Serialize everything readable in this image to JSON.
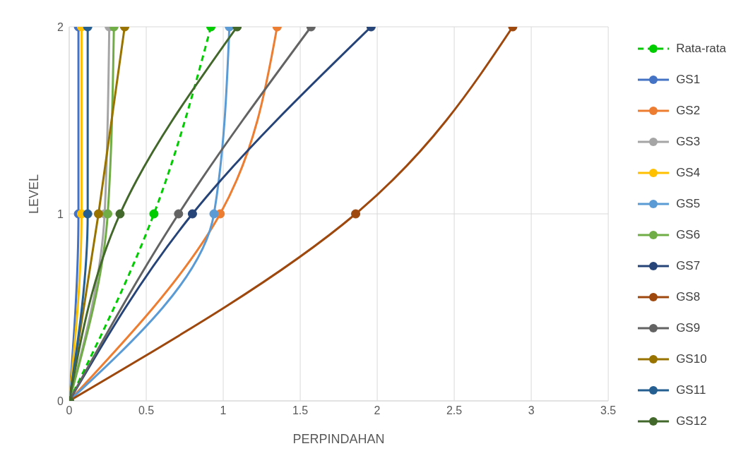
{
  "chart_data": {
    "type": "line",
    "xlabel": "PERPINDAHAN",
    "ylabel": "LEVEL",
    "xlim": [
      0,
      3.5
    ],
    "xticks": [
      0,
      0.5,
      1,
      1.5,
      2,
      2.5,
      3,
      3.5
    ],
    "ylim": [
      0,
      2
    ],
    "yticks": [
      0,
      1,
      2
    ],
    "grid": true,
    "legend": "right",
    "marker": "circle",
    "line_style": "solid",
    "series": [
      {
        "name": "Rata-rata",
        "color": "#00cc00",
        "line_style": "dashed",
        "x": [
          0,
          0.55,
          0.92
        ],
        "values": [
          0,
          1,
          2
        ]
      },
      {
        "name": "GS1",
        "color": "#4472c4",
        "x": [
          0,
          0.06,
          0.06
        ],
        "values": [
          0,
          1,
          2
        ]
      },
      {
        "name": "GS2",
        "color": "#ed7d31",
        "x": [
          0,
          0.98,
          1.35
        ],
        "values": [
          0,
          1,
          2
        ]
      },
      {
        "name": "GS3",
        "color": "#a5a5a5",
        "x": [
          0,
          0.23,
          0.26
        ],
        "values": [
          0,
          1,
          2
        ]
      },
      {
        "name": "GS4",
        "color": "#ffc000",
        "x": [
          0,
          0.08,
          0.08
        ],
        "values": [
          0,
          1,
          2
        ]
      },
      {
        "name": "GS5",
        "color": "#5b9bd5",
        "x": [
          0,
          0.94,
          1.04
        ],
        "values": [
          0,
          1,
          2
        ]
      },
      {
        "name": "GS6",
        "color": "#70ad47",
        "x": [
          0,
          0.25,
          0.29
        ],
        "values": [
          0,
          1,
          2
        ]
      },
      {
        "name": "GS7",
        "color": "#264478",
        "x": [
          0,
          0.8,
          1.96
        ],
        "values": [
          0,
          1,
          2
        ]
      },
      {
        "name": "GS8",
        "color": "#9e480e",
        "x": [
          0,
          1.86,
          2.88
        ],
        "values": [
          0,
          1,
          2
        ]
      },
      {
        "name": "GS9",
        "color": "#636363",
        "x": [
          0,
          0.71,
          1.57
        ],
        "values": [
          0,
          1,
          2
        ]
      },
      {
        "name": "GS10",
        "color": "#997300",
        "x": [
          0,
          0.19,
          0.36
        ],
        "values": [
          0,
          1,
          2
        ]
      },
      {
        "name": "GS11",
        "color": "#255e91",
        "x": [
          0,
          0.12,
          0.12
        ],
        "values": [
          0,
          1,
          2
        ]
      },
      {
        "name": "GS12",
        "color": "#43682b",
        "x": [
          0,
          0.33,
          1.09
        ],
        "values": [
          0,
          1,
          2
        ]
      }
    ]
  }
}
